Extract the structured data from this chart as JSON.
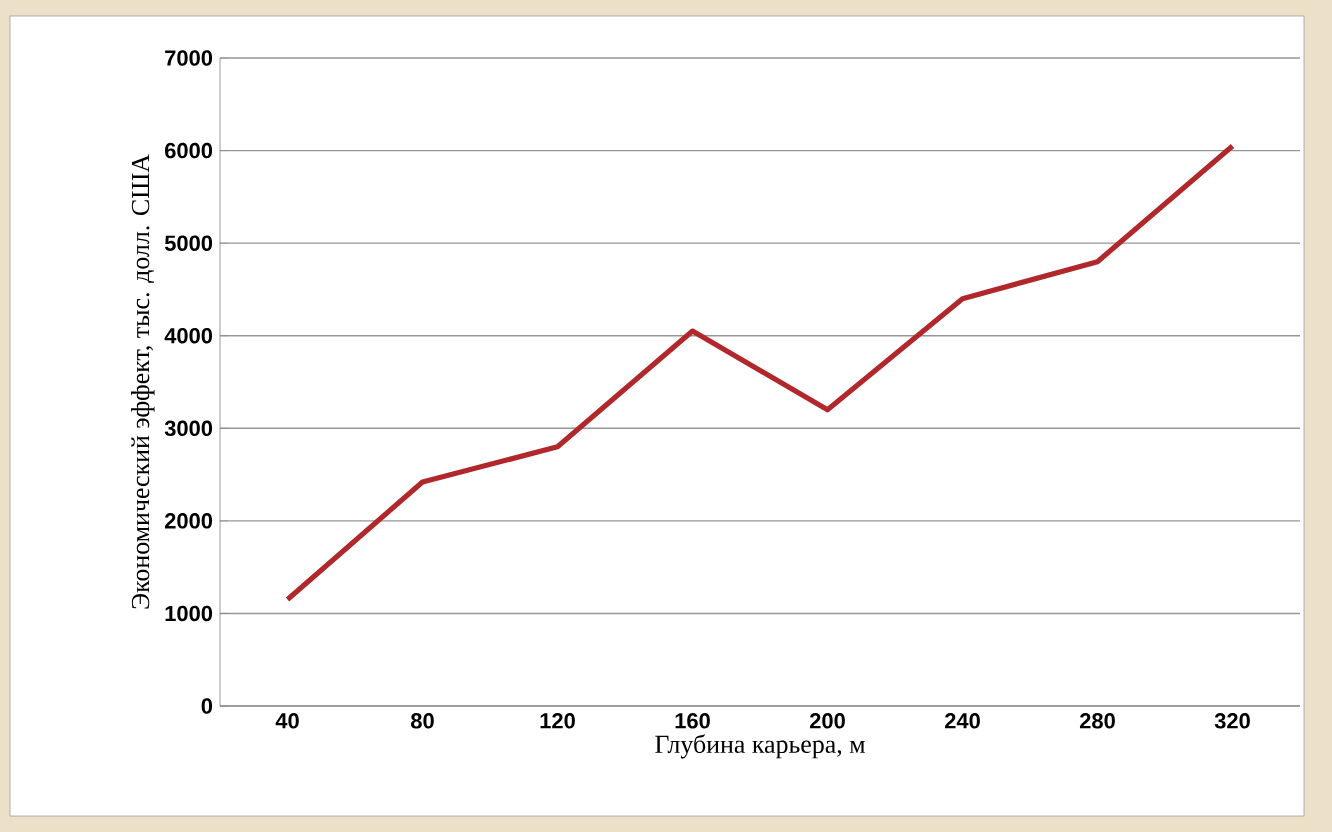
{
  "chart_data": {
    "type": "line",
    "xlabel": "Глубина карьера, м",
    "ylabel": "Экономический эффект, тыс. долл. США",
    "categories": [
      "40",
      "80",
      "120",
      "160",
      "200",
      "240",
      "280",
      "320"
    ],
    "series": [
      {
        "color": "#b0282c",
        "values": [
          1150,
          2420,
          2800,
          4050,
          3200,
          4400,
          4800,
          6050
        ]
      }
    ],
    "ylim": [
      0,
      7000
    ],
    "yticks": [
      0,
      1000,
      2000,
      3000,
      4000,
      5000,
      6000,
      7000
    ],
    "grid": "y",
    "marker": "none",
    "line_style": "solid"
  }
}
